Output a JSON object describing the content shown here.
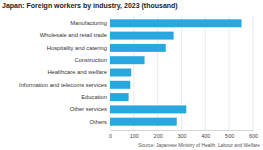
{
  "chart_data": {
    "type": "bar",
    "orientation": "horizontal",
    "title": "Japan: Foreign workers by industry, 2023 (thousand)",
    "source": "Source: Japanese Ministry of Health, Labour and Welfare",
    "categories": [
      "Manufacturing",
      "Wholesale and retail trade",
      "Hospitality and catering",
      "Construction",
      "Healthcare and welfare",
      "Information and telecoms services",
      "Education",
      "Other services",
      "Others"
    ],
    "values": [
      552,
      267,
      234,
      145,
      89,
      85,
      78,
      320,
      280
    ],
    "color": "#29a8e0",
    "xlim": [
      0,
      600
    ],
    "xticks": [
      0,
      100,
      200,
      300,
      400,
      500,
      600
    ],
    "grid": true
  }
}
